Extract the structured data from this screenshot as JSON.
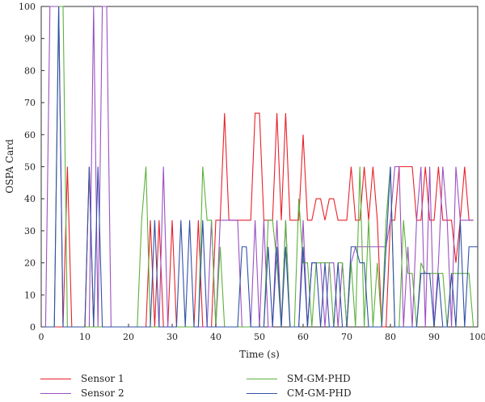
{
  "chart_data": {
    "type": "line",
    "title": "",
    "xlabel": "Time (s)",
    "ylabel": "OSPA Card",
    "xlim": [
      0,
      100
    ],
    "ylim": [
      0,
      100
    ],
    "xticks": [
      0,
      10,
      20,
      30,
      40,
      50,
      60,
      70,
      80,
      90,
      100
    ],
    "yticks": [
      0,
      10,
      20,
      30,
      40,
      50,
      60,
      70,
      80,
      90,
      100
    ],
    "grid": false,
    "legend_placement": "bottom",
    "series": [
      {
        "name": "Sensor 1",
        "color": "#e8212b",
        "x": [
          0,
          1,
          2,
          3,
          4,
          5,
          6,
          7,
          8,
          9,
          10,
          11,
          12,
          13,
          14,
          15,
          16,
          17,
          18,
          19,
          20,
          21,
          22,
          23,
          24,
          25,
          26,
          27,
          28,
          29,
          30,
          31,
          32,
          33,
          34,
          35,
          36,
          37,
          38,
          39,
          40,
          41,
          42,
          43,
          44,
          45,
          46,
          47,
          48,
          49,
          50,
          51,
          52,
          53,
          54,
          55,
          56,
          57,
          58,
          59,
          60,
          61,
          62,
          63,
          64,
          65,
          66,
          67,
          68,
          69,
          70,
          71,
          72,
          73,
          74,
          75,
          76,
          77,
          78,
          79,
          80,
          81,
          82,
          83,
          84,
          85,
          86,
          87,
          88,
          89,
          90,
          91,
          92,
          93,
          94,
          95,
          96,
          97,
          98,
          99
        ],
        "values": [
          0,
          0,
          0,
          0,
          0,
          0,
          50,
          0,
          0,
          0,
          0,
          50,
          0,
          0,
          0,
          0,
          0,
          0,
          0,
          0,
          0,
          0,
          0,
          0,
          0,
          33.3,
          0,
          33.3,
          0,
          0,
          33.3,
          0,
          0,
          0,
          0,
          0,
          33.3,
          0,
          0,
          0,
          33.3,
          33.3,
          66.7,
          33.3,
          33.3,
          33.3,
          33.3,
          33.3,
          33.3,
          66.7,
          66.7,
          33.3,
          33.3,
          33.3,
          66.7,
          33.3,
          66.7,
          33.3,
          33.3,
          33.3,
          60,
          33.3,
          33.3,
          40,
          40,
          33.3,
          40,
          40,
          33.3,
          33.3,
          33.3,
          50,
          33.3,
          33.3,
          50,
          33.3,
          50,
          33.3,
          0,
          0,
          33.3,
          33.3,
          50,
          50,
          50,
          50,
          33.3,
          33.3,
          50,
          33.3,
          33.3,
          50,
          33.3,
          33.3,
          33.3,
          20,
          33.3,
          50,
          33.3,
          33.3
        ]
      },
      {
        "name": "Sensor 2",
        "color": "#9b51c2",
        "x": [
          0,
          1,
          2,
          3,
          4,
          5,
          6,
          7,
          8,
          9,
          10,
          11,
          12,
          13,
          14,
          15,
          16,
          17,
          18,
          19,
          20,
          21,
          22,
          23,
          24,
          25,
          26,
          27,
          28,
          29,
          30,
          31,
          32,
          33,
          34,
          35,
          36,
          37,
          38,
          39,
          40,
          41,
          42,
          43,
          44,
          45,
          46,
          47,
          48,
          49,
          50,
          51,
          52,
          53,
          54,
          55,
          56,
          57,
          58,
          59,
          60,
          61,
          62,
          63,
          64,
          65,
          66,
          67,
          68,
          69,
          70,
          71,
          72,
          73,
          74,
          75,
          76,
          77,
          78,
          79,
          80,
          81,
          82,
          83,
          84,
          85,
          86,
          87,
          88,
          89,
          90,
          91,
          92,
          93,
          94,
          95,
          96,
          97,
          98,
          99
        ],
        "values": [
          0,
          0,
          100,
          100,
          100,
          0,
          0,
          0,
          0,
          0,
          0,
          0,
          100,
          0,
          100,
          100,
          0,
          0,
          0,
          0,
          0,
          0,
          0,
          0,
          0,
          0,
          0,
          0,
          50,
          0,
          0,
          0,
          0,
          0,
          0,
          0,
          0,
          0,
          0,
          33.3,
          0,
          33.3,
          33.3,
          33.3,
          33.3,
          33.3,
          0,
          0,
          0,
          33.3,
          0,
          33.3,
          0,
          0,
          33.3,
          0,
          33.3,
          0,
          0,
          0,
          33.3,
          0,
          20,
          20,
          20,
          0,
          20,
          20,
          0,
          20,
          0,
          20,
          25,
          25,
          25,
          25,
          25,
          25,
          25,
          25,
          33.3,
          50,
          50,
          0,
          25,
          0,
          33.3,
          50,
          0,
          50,
          0,
          20,
          50,
          33.3,
          0,
          50,
          33.3,
          33.3,
          33.3,
          33.3
        ]
      },
      {
        "name": "SM-GM-PHD",
        "color": "#5db13d",
        "x": [
          0,
          1,
          2,
          3,
          4,
          5,
          6,
          7,
          8,
          9,
          10,
          11,
          12,
          13,
          14,
          15,
          16,
          17,
          18,
          19,
          20,
          21,
          22,
          23,
          24,
          25,
          26,
          27,
          28,
          29,
          30,
          31,
          32,
          33,
          34,
          35,
          36,
          37,
          38,
          39,
          40,
          41,
          42,
          43,
          44,
          45,
          46,
          47,
          48,
          49,
          50,
          51,
          52,
          53,
          54,
          55,
          56,
          57,
          58,
          59,
          60,
          61,
          62,
          63,
          64,
          65,
          66,
          67,
          68,
          69,
          70,
          71,
          72,
          73,
          74,
          75,
          76,
          77,
          78,
          79,
          80,
          81,
          82,
          83,
          84,
          85,
          86,
          87,
          88,
          89,
          90,
          91,
          92,
          93,
          94,
          95,
          96,
          97,
          98,
          99
        ],
        "values": [
          0,
          0,
          0,
          0,
          100,
          100,
          0,
          0,
          0,
          0,
          0,
          0,
          0,
          0,
          0,
          0,
          0,
          0,
          0,
          0,
          0,
          0,
          0,
          33.3,
          50,
          0,
          0,
          0,
          0,
          0,
          0,
          0,
          0,
          0,
          0,
          0,
          0,
          50,
          33.3,
          33.3,
          0,
          25,
          0,
          0,
          0,
          0,
          0,
          0,
          0,
          0,
          0,
          0,
          33.3,
          33.3,
          20,
          0,
          33.3,
          0,
          0,
          40,
          20,
          20,
          0,
          20,
          20,
          20,
          20,
          0,
          20,
          20,
          0,
          20,
          0,
          50,
          0,
          33.3,
          0,
          20,
          0,
          33.3,
          50,
          0,
          0,
          33.3,
          16.7,
          16.7,
          0,
          20,
          16.7,
          16.7,
          16.7,
          16.7,
          16.7,
          0,
          16.7,
          16.7,
          16.7,
          16.7,
          16.7,
          0
        ]
      },
      {
        "name": "CM-GM-PHD",
        "color": "#3151a6",
        "x": [
          0,
          1,
          2,
          3,
          4,
          5,
          6,
          7,
          8,
          9,
          10,
          11,
          12,
          13,
          14,
          15,
          16,
          17,
          18,
          19,
          20,
          21,
          22,
          23,
          24,
          25,
          26,
          27,
          28,
          29,
          30,
          31,
          32,
          33,
          34,
          35,
          36,
          37,
          38,
          39,
          40,
          41,
          42,
          43,
          44,
          45,
          46,
          47,
          48,
          49,
          50,
          51,
          52,
          53,
          54,
          55,
          56,
          57,
          58,
          59,
          60,
          61,
          62,
          63,
          64,
          65,
          66,
          67,
          68,
          69,
          70,
          71,
          72,
          73,
          74,
          75,
          76,
          77,
          78,
          79,
          80,
          81,
          82,
          83,
          84,
          85,
          86,
          87,
          88,
          89,
          90,
          91,
          92,
          93,
          94,
          95,
          96,
          97,
          98,
          99,
          100
        ],
        "values": [
          0,
          0,
          0,
          0,
          100,
          0,
          0,
          0,
          0,
          0,
          0,
          50,
          0,
          50,
          0,
          0,
          0,
          0,
          0,
          0,
          0,
          0,
          0,
          0,
          0,
          0,
          33.3,
          0,
          0,
          0,
          0,
          0,
          33.3,
          0,
          33.3,
          0,
          0,
          33.3,
          0,
          0,
          0,
          0,
          0,
          0,
          0,
          0,
          25,
          25,
          0,
          0,
          0,
          0,
          25,
          0,
          25,
          0,
          25,
          0,
          0,
          0,
          25,
          0,
          20,
          20,
          0,
          20,
          0,
          0,
          20,
          0,
          0,
          25,
          25,
          20,
          20,
          0,
          0,
          0,
          0,
          25,
          50,
          0,
          0,
          0,
          0,
          0,
          0,
          16.7,
          16.7,
          16.7,
          0,
          16.7,
          0,
          0,
          16.7,
          0,
          33.3,
          0,
          25,
          25,
          25
        ]
      }
    ]
  }
}
